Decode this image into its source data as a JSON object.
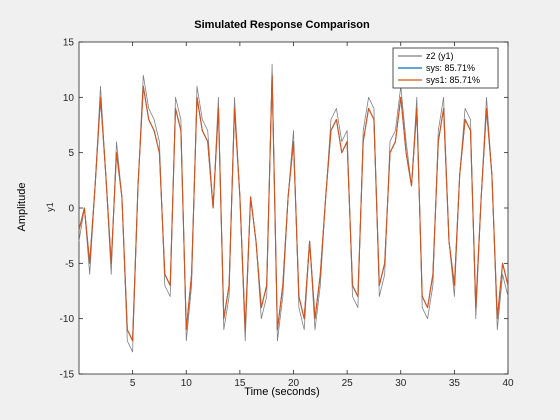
{
  "chart_data": {
    "type": "line",
    "title": "Simulated Response Comparison",
    "xlabel": "Time (seconds)",
    "ylabel": "Amplitude",
    "channel_label": "y1",
    "xlim": [
      0,
      40
    ],
    "ylim": [
      -15,
      15
    ],
    "x_ticks": [
      5,
      10,
      15,
      20,
      25,
      30,
      35,
      40
    ],
    "y_ticks": [
      15,
      10,
      5,
      0,
      -5,
      -10,
      -15
    ],
    "grid": false,
    "legend_position": "top-right",
    "series": [
      {
        "name": "z2 (y1)",
        "color": "#808080",
        "x": [
          0,
          0.5,
          1,
          1.5,
          2,
          2.5,
          3,
          3.5,
          4,
          4.5,
          5,
          5.5,
          6,
          6.5,
          7,
          7.5,
          8,
          8.5,
          9,
          9.5,
          10,
          10.5,
          11,
          11.5,
          12,
          12.5,
          13,
          13.5,
          14,
          14.5,
          15,
          15.5,
          16,
          16.5,
          17,
          17.5,
          18,
          18.5,
          19,
          19.5,
          20,
          20.5,
          21,
          21.5,
          22,
          22.5,
          23,
          23.5,
          24,
          24.5,
          25,
          25.5,
          26,
          26.5,
          27,
          27.5,
          28,
          28.5,
          29,
          29.5,
          30,
          30.5,
          31,
          31.5,
          32,
          32.5,
          33,
          33.5,
          34,
          34.5,
          35,
          35.5,
          36,
          36.5,
          37,
          37.5,
          38,
          38.5,
          39,
          39.5,
          40
        ],
        "values": [
          -3,
          0,
          -6,
          2,
          11,
          3,
          -6,
          6,
          1,
          -12,
          -13,
          2,
          12,
          9,
          8,
          6,
          -7,
          -8,
          10,
          8,
          -12,
          -7,
          11,
          8,
          7,
          0,
          10,
          -11,
          -8,
          10,
          1,
          -12,
          1,
          -3,
          -10,
          -8,
          13,
          -12,
          -8,
          1,
          7,
          -9,
          -11,
          -3,
          -11,
          -7,
          1,
          8,
          9,
          6,
          7,
          -8,
          -9,
          7,
          10,
          9,
          -8,
          -6,
          6,
          7,
          11,
          6,
          2,
          10,
          -9,
          -10,
          -7,
          7,
          10,
          -3,
          -8,
          3,
          9,
          8,
          -10,
          1,
          10,
          3,
          -11,
          -6,
          -8
        ]
      },
      {
        "name": "sys: 85.71%",
        "color": "#0072bd",
        "x": [
          0,
          0.5,
          1,
          1.5,
          2,
          2.5,
          3,
          3.5,
          4,
          4.5,
          5,
          5.5,
          6,
          6.5,
          7,
          7.5,
          8,
          8.5,
          9,
          9.5,
          10,
          10.5,
          11,
          11.5,
          12,
          12.5,
          13,
          13.5,
          14,
          14.5,
          15,
          15.5,
          16,
          16.5,
          17,
          17.5,
          18,
          18.5,
          19,
          19.5,
          20,
          20.5,
          21,
          21.5,
          22,
          22.5,
          23,
          23.5,
          24,
          24.5,
          25,
          25.5,
          26,
          26.5,
          27,
          27.5,
          28,
          28.5,
          29,
          29.5,
          30,
          30.5,
          31,
          31.5,
          32,
          32.5,
          33,
          33.5,
          34,
          34.5,
          35,
          35.5,
          36,
          36.5,
          37,
          37.5,
          38,
          38.5,
          39,
          39.5,
          40
        ],
        "values": [
          -2,
          0,
          -5,
          2,
          10,
          3,
          -5,
          5,
          1,
          -11,
          -12,
          2,
          11,
          8,
          7,
          5,
          -6,
          -7,
          9,
          7,
          -11,
          -6,
          10,
          7,
          6,
          0,
          9,
          -10,
          -7,
          9,
          1,
          -11,
          1,
          -3,
          -9,
          -7,
          12,
          -11,
          -7,
          1,
          6,
          -8,
          -10,
          -3,
          -10,
          -6,
          1,
          7,
          8,
          5,
          6,
          -7,
          -8,
          6,
          9,
          8,
          -7,
          -5,
          5,
          6,
          10,
          5,
          2,
          9,
          -8,
          -9,
          -6,
          6,
          9,
          -3,
          -7,
          3,
          8,
          7,
          -9,
          1,
          9,
          3,
          -10,
          -5,
          -7
        ]
      },
      {
        "name": "sys1: 85.71%",
        "color": "#d95319",
        "x": [
          0,
          0.5,
          1,
          1.5,
          2,
          2.5,
          3,
          3.5,
          4,
          4.5,
          5,
          5.5,
          6,
          6.5,
          7,
          7.5,
          8,
          8.5,
          9,
          9.5,
          10,
          10.5,
          11,
          11.5,
          12,
          12.5,
          13,
          13.5,
          14,
          14.5,
          15,
          15.5,
          16,
          16.5,
          17,
          17.5,
          18,
          18.5,
          19,
          19.5,
          20,
          20.5,
          21,
          21.5,
          22,
          22.5,
          23,
          23.5,
          24,
          24.5,
          25,
          25.5,
          26,
          26.5,
          27,
          27.5,
          28,
          28.5,
          29,
          29.5,
          30,
          30.5,
          31,
          31.5,
          32,
          32.5,
          33,
          33.5,
          34,
          34.5,
          35,
          35.5,
          36,
          36.5,
          37,
          37.5,
          38,
          38.5,
          39,
          39.5,
          40
        ],
        "values": [
          -2,
          0,
          -5,
          2,
          10,
          3,
          -5,
          5,
          1,
          -11,
          -12,
          2,
          11,
          8,
          7,
          5,
          -6,
          -7,
          9,
          7,
          -11,
          -6,
          10,
          7,
          6,
          0,
          9,
          -10,
          -7,
          9,
          1,
          -11,
          1,
          -3,
          -9,
          -7,
          12,
          -11,
          -7,
          1,
          6,
          -8,
          -10,
          -3,
          -10,
          -6,
          1,
          7,
          8,
          5,
          6,
          -7,
          -8,
          6,
          9,
          8,
          -7,
          -5,
          5,
          6,
          10,
          5,
          2,
          9,
          -8,
          -9,
          -6,
          6,
          9,
          -3,
          -7,
          3,
          8,
          7,
          -9,
          1,
          9,
          3,
          -10,
          -5,
          -7
        ]
      }
    ]
  }
}
